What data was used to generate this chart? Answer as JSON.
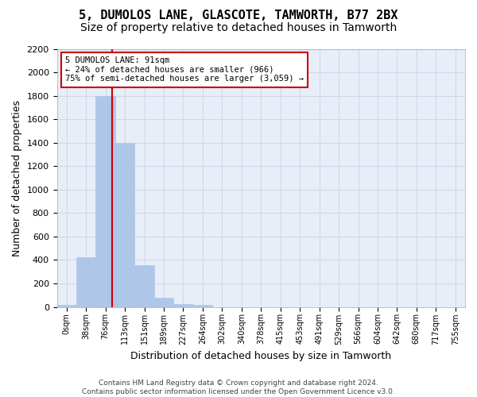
{
  "title": "5, DUMOLOS LANE, GLASCOTE, TAMWORTH, B77 2BX",
  "subtitle": "Size of property relative to detached houses in Tamworth",
  "xlabel": "Distribution of detached houses by size in Tamworth",
  "ylabel": "Number of detached properties",
  "bin_labels": [
    "0sqm",
    "38sqm",
    "76sqm",
    "113sqm",
    "151sqm",
    "189sqm",
    "227sqm",
    "264sqm",
    "302sqm",
    "340sqm",
    "378sqm",
    "415sqm",
    "453sqm",
    "491sqm",
    "529sqm",
    "566sqm",
    "604sqm",
    "642sqm",
    "680sqm",
    "717sqm",
    "755sqm"
  ],
  "bar_values": [
    15,
    420,
    1800,
    1400,
    355,
    75,
    25,
    15,
    0,
    0,
    0,
    0,
    0,
    0,
    0,
    0,
    0,
    0,
    0,
    0,
    0
  ],
  "bar_color": "#aec6e8",
  "bar_edgecolor": "#aec6e8",
  "property_line_x": 2.35,
  "property_sqm": 91,
  "annotation_text": "5 DUMOLOS LANE: 91sqm\n← 24% of detached houses are smaller (966)\n75% of semi-detached houses are larger (3,059) →",
  "annotation_box_color": "#ffffff",
  "annotation_box_edgecolor": "#cc0000",
  "red_line_color": "#cc0000",
  "ylim": [
    0,
    2200
  ],
  "yticks": [
    0,
    200,
    400,
    600,
    800,
    1000,
    1200,
    1400,
    1600,
    1800,
    2000,
    2200
  ],
  "grid_color": "#d0d8e8",
  "bg_color": "#e8eef8",
  "footer_text": "Contains HM Land Registry data © Crown copyright and database right 2024.\nContains public sector information licensed under the Open Government Licence v3.0.",
  "title_fontsize": 11,
  "subtitle_fontsize": 10,
  "xlabel_fontsize": 9,
  "ylabel_fontsize": 9
}
